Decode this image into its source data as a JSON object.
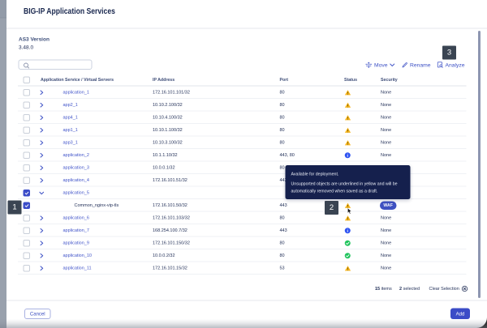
{
  "window": {
    "title": "BIG-IP Application Services"
  },
  "version": {
    "label": "AS3 Version",
    "value": "3.48.0"
  },
  "search": {
    "value": "",
    "placeholder": ""
  },
  "toolbar": {
    "move": "Move",
    "rename": "Rename",
    "analyze": "Analyze"
  },
  "annotations": {
    "step1": "1",
    "step2": "2",
    "step3": "3"
  },
  "tooltip": {
    "line1": "Available for deployment.",
    "line2": "Unsupported objects are underlined in yellow and will be",
    "line3": "automatically removed when saved as a draft."
  },
  "table": {
    "headers": {
      "name": "Application Service / Virtual Servers",
      "ip": "IP Address",
      "port": "Port",
      "status": "Status",
      "security": "Security"
    },
    "rows": [
      {
        "name": "application_1",
        "link": true,
        "level": 0,
        "expander": "collapsed",
        "checked": false,
        "ip": "172.16.101.101/32",
        "port": "80",
        "status": "warning",
        "security": "None"
      },
      {
        "name": "app2_1",
        "link": true,
        "level": 0,
        "expander": "collapsed",
        "checked": false,
        "ip": "10.10.2.100/32",
        "port": "80",
        "status": "warning",
        "security": "None"
      },
      {
        "name": "app4_1",
        "link": true,
        "level": 0,
        "expander": "collapsed",
        "checked": false,
        "ip": "10.10.4.100/32",
        "port": "80",
        "status": "warning",
        "security": "None"
      },
      {
        "name": "app1_1",
        "link": true,
        "level": 0,
        "expander": "collapsed",
        "checked": false,
        "ip": "10.10.1.100/32",
        "port": "80",
        "status": "warning",
        "security": "None"
      },
      {
        "name": "app3_1",
        "link": true,
        "level": 0,
        "expander": "collapsed",
        "checked": false,
        "ip": "10.10.3.100/32",
        "port": "80",
        "status": "warning",
        "security": "None"
      },
      {
        "name": "application_2",
        "link": true,
        "level": 0,
        "expander": "collapsed",
        "checked": false,
        "ip": "10.1.1.10/32",
        "port": "443, 80",
        "status": "info",
        "security": "None"
      },
      {
        "name": "application_3",
        "link": true,
        "level": 0,
        "expander": "collapsed",
        "checked": false,
        "ip": "10.0.0.1/32",
        "port": "80",
        "status": null,
        "security": null
      },
      {
        "name": "application_4",
        "link": true,
        "level": 0,
        "expander": "collapsed",
        "checked": false,
        "ip": "172.16.101.51/32",
        "port": "443",
        "status": null,
        "security": null
      },
      {
        "name": "application_5",
        "link": true,
        "level": 0,
        "expander": "expanded",
        "checked": true,
        "ip": "",
        "port": "",
        "status": null,
        "security": null
      },
      {
        "name": "Common_nginx-vip-tls",
        "link": false,
        "level": 1,
        "expander": null,
        "checked": true,
        "ip": "172.16.101.50/32",
        "port": "443",
        "status": "warning",
        "security": "WAF"
      },
      {
        "name": "application_6",
        "link": true,
        "level": 0,
        "expander": "collapsed",
        "checked": false,
        "ip": "172.16.101.103/32",
        "port": "80",
        "status": "warning",
        "security": "None"
      },
      {
        "name": "application_7",
        "link": true,
        "level": 0,
        "expander": "collapsed",
        "checked": false,
        "ip": "168.254.100.7/32",
        "port": "443",
        "status": "info",
        "security": "None"
      },
      {
        "name": "application_9",
        "link": true,
        "level": 0,
        "expander": "collapsed",
        "checked": false,
        "ip": "172.16.101.150/32",
        "port": "80",
        "status": "success",
        "security": "None"
      },
      {
        "name": "application_10",
        "link": true,
        "level": 0,
        "expander": "collapsed",
        "checked": false,
        "ip": "10.0.0.2/32",
        "port": "80",
        "status": "success",
        "security": "None"
      },
      {
        "name": "application_11",
        "link": true,
        "level": 0,
        "expander": "collapsed",
        "checked": false,
        "ip": "172.16.101.15/32",
        "port": "53",
        "status": "warning",
        "security": "None"
      }
    ]
  },
  "footer": {
    "items_count": "15",
    "items_label": "items",
    "selected_count": "2",
    "selected_label": "selected",
    "clear_label": "Clear Selection"
  },
  "buttons": {
    "cancel": "Cancel",
    "add": "Add"
  },
  "colors": {
    "primary": "#3b4cc7",
    "link": "#4154c9",
    "dark_text": "#1e2c55",
    "warning": "#f5b51f",
    "info": "#2e53f1",
    "success": "#21c45d",
    "tooltip_bg": "#15204d",
    "badge_bg": "#3a4452"
  }
}
